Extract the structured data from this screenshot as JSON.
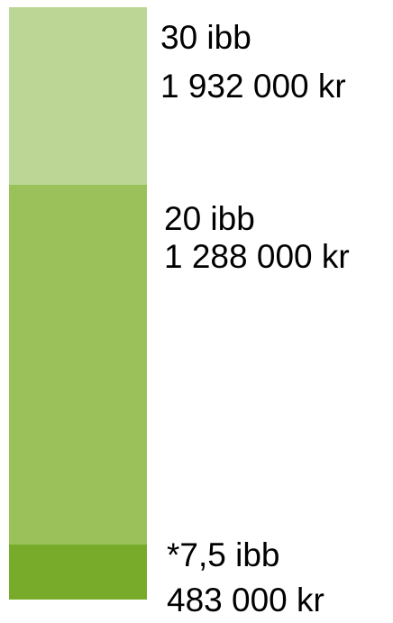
{
  "levels": [
    {
      "label": "30 ibb",
      "amount": "1 932 000 kr"
    },
    {
      "label": "20 ibb",
      "amount": "1 288 000 kr"
    },
    {
      "label": "*7,5 ibb",
      "amount": "483 000 kr"
    }
  ]
}
